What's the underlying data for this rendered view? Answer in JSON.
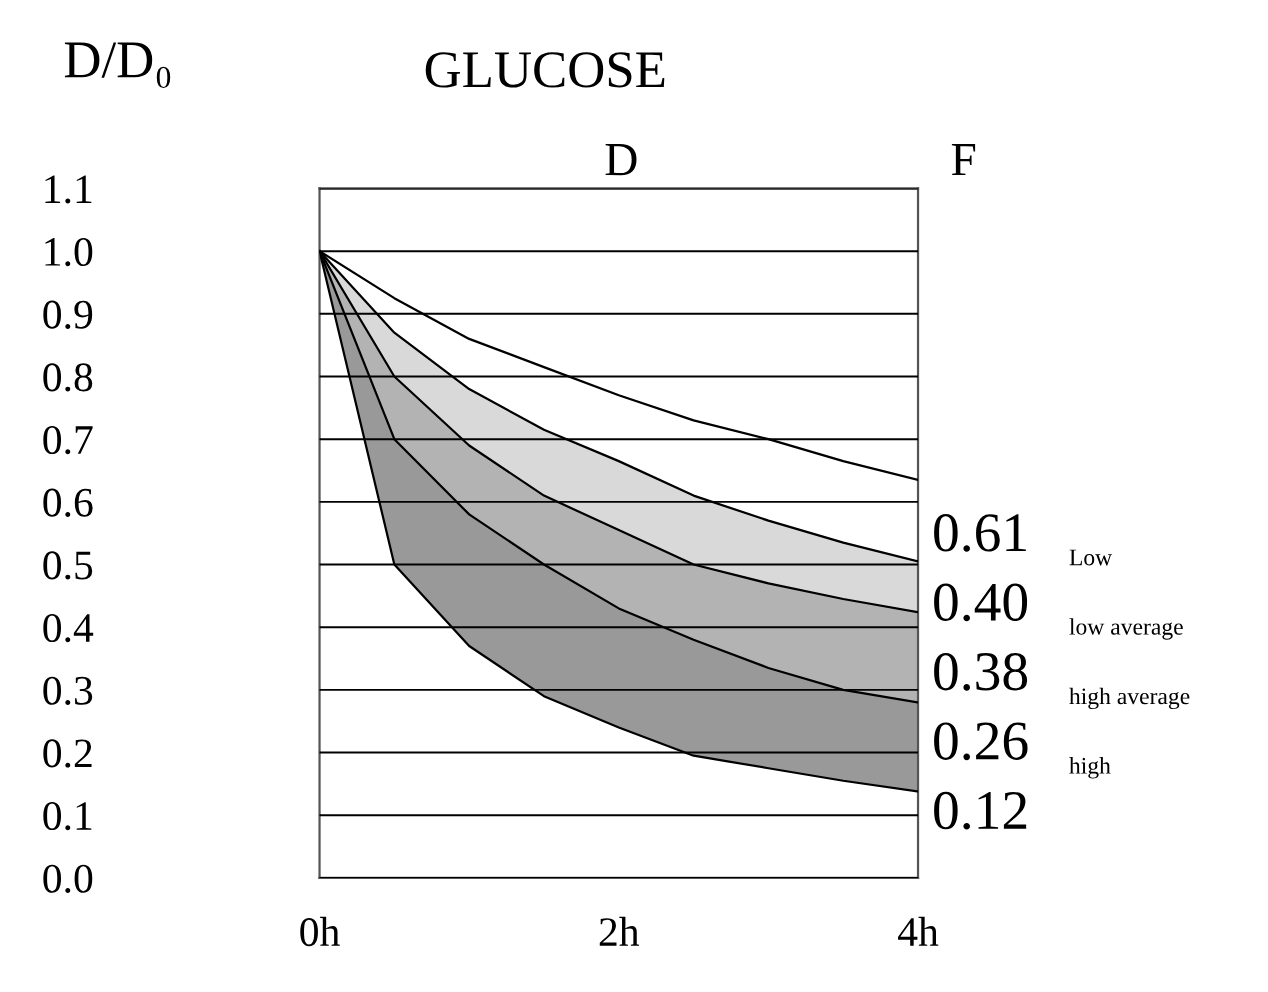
{
  "chart_data": {
    "type": "area",
    "stacked": true,
    "title": "GLUCOSE",
    "ylabel": "D/D₀",
    "x": [
      0,
      0.5,
      1,
      1.5,
      2,
      2.5,
      3,
      3.5,
      4
    ],
    "series": [
      {
        "color": "#ffffff",
        "values": [
          1.0,
          0.5,
          0.37,
          0.29,
          0.24,
          0.195,
          0.175,
          0.155,
          0.138
        ]
      },
      {
        "color": "#999999",
        "values": [
          0,
          0.2,
          0.21,
          0.21,
          0.19,
          0.185,
          0.16,
          0.145,
          0.142
        ]
      },
      {
        "color": "#b3b3b3",
        "values": [
          0,
          0.1,
          0.11,
          0.11,
          0.125,
          0.12,
          0.135,
          0.145,
          0.144
        ]
      },
      {
        "color": "#d9d9d9",
        "values": [
          0,
          0.07,
          0.09,
          0.105,
          0.11,
          0.11,
          0.1,
          0.09,
          0.081
        ]
      },
      {
        "color": "#ffffff",
        "values": [
          0,
          0.055,
          0.08,
          0.1,
          0.105,
          0.12,
          0.13,
          0.13,
          0.13
        ]
      }
    ],
    "xlim": [
      0,
      4
    ],
    "xticks": [
      {
        "value": 0,
        "label": "0h"
      },
      {
        "value": 2,
        "label": "2h"
      },
      {
        "value": 4,
        "label": "4h"
      }
    ],
    "ylim": [
      0,
      1.1
    ],
    "yticks": [
      {
        "value": 0,
        "label": "0.0"
      },
      0.1,
      0.2,
      0.3,
      0.4,
      0.5,
      0.6,
      0.7,
      0.8,
      0.9,
      {
        "value": 1.0,
        "label": "1.0"
      },
      1.1
    ],
    "grid": "y",
    "legend": false,
    "line_style": "solid",
    "annotations": [
      "D",
      "F",
      "0.61",
      "Low",
      "0.40",
      "low average",
      "0.38",
      "high average",
      "0.26",
      "high",
      "0.12"
    ]
  }
}
